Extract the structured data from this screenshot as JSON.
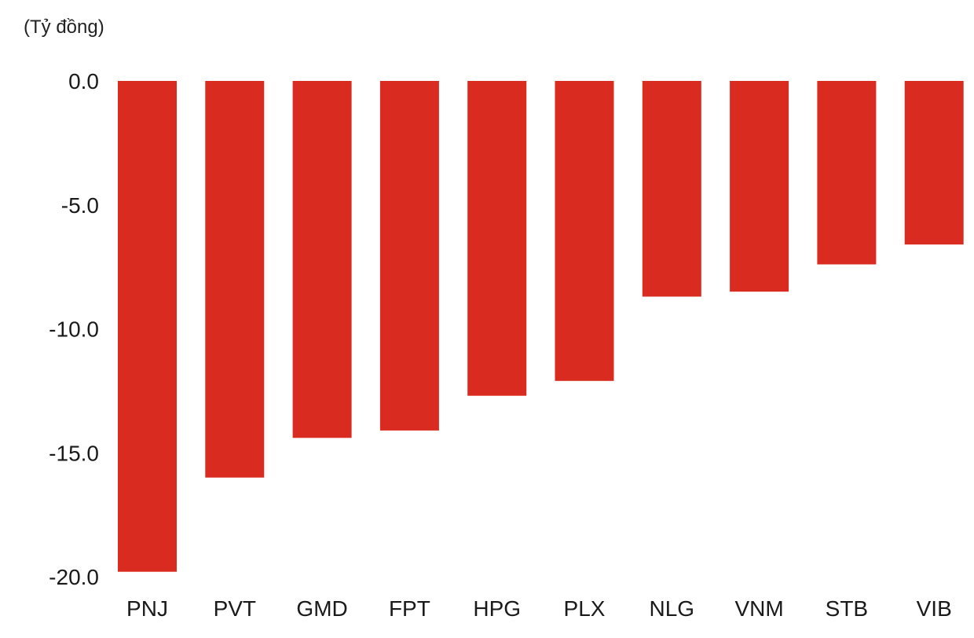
{
  "chart_data": {
    "type": "bar",
    "ylabel": "(Tỷ đồng)",
    "categories": [
      "PNJ",
      "PVT",
      "GMD",
      "FPT",
      "HPG",
      "PLX",
      "NLG",
      "VNM",
      "STB",
      "VIB"
    ],
    "values": [
      -19.8,
      -16.0,
      -14.4,
      -14.1,
      -12.7,
      -12.1,
      -8.7,
      -8.5,
      -7.4,
      -6.6
    ],
    "ylim": [
      -20,
      0
    ],
    "yticks": [
      0,
      -5,
      -10,
      -15,
      -20
    ],
    "ytick_labels": [
      "0.0",
      "-5.0",
      "-10.0",
      "-15.0",
      "-20.0"
    ],
    "bar_color": "#d92b1f",
    "grid": false,
    "legend": "none"
  }
}
